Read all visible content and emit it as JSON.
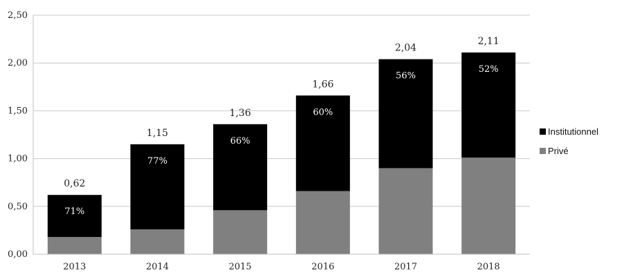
{
  "chart_data": {
    "type": "bar",
    "stacked": true,
    "categories": [
      "2013",
      "2014",
      "2015",
      "2016",
      "2017",
      "2018"
    ],
    "series": [
      {
        "name": "Privé",
        "values": [
          0.18,
          0.26,
          0.46,
          0.66,
          0.9,
          1.01
        ],
        "color": "#808080"
      },
      {
        "name": "Institutionnel",
        "values": [
          0.44,
          0.89,
          0.9,
          1.0,
          1.14,
          1.1
        ],
        "color": "#000000"
      }
    ],
    "totals": [
      0.62,
      1.15,
      1.36,
      1.66,
      2.04,
      2.11
    ],
    "total_labels": [
      "0,62",
      "1,15",
      "1,36",
      "1,66",
      "2,04",
      "2,11"
    ],
    "institutional_share_labels": [
      "71%",
      "77%",
      "66%",
      "60%",
      "56%",
      "52%"
    ],
    "yticks": [
      0,
      0.5,
      1.0,
      1.5,
      2.0,
      2.5
    ],
    "ytick_labels": [
      "0,00",
      "0,50",
      "1,00",
      "1,50",
      "2,00",
      "2,50"
    ],
    "ylim": [
      0,
      2.5
    ],
    "grid": true,
    "legend": {
      "position": "right",
      "entries": [
        {
          "label": "Institutionnel",
          "color": "#000000"
        },
        {
          "label": "Privé",
          "color": "#808080"
        }
      ]
    },
    "title": "",
    "xlabel": "",
    "ylabel": ""
  }
}
